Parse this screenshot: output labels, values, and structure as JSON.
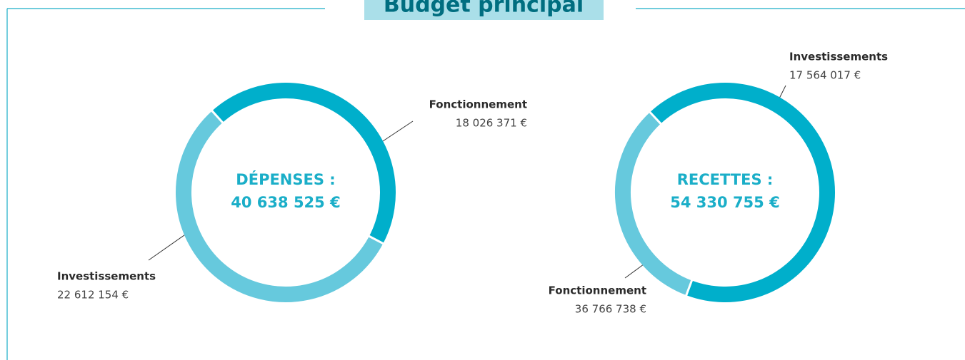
{
  "title": "Budget principal",
  "chart_data": [
    {
      "type": "pie",
      "center_label": [
        "DÉPENSES :",
        "40 638 525 €"
      ],
      "categories": [
        "Fonctionnement",
        "Investissements"
      ],
      "values": [
        18026371,
        22612154
      ],
      "value_labels": [
        "18 026 371 €",
        "22 612 154 €"
      ],
      "colors": [
        "#00afcb",
        "#66c9dd"
      ]
    },
    {
      "type": "pie",
      "center_label": [
        "RECETTES :",
        "54 330 755 €"
      ],
      "categories": [
        "Fonctionnement",
        "Investissements"
      ],
      "values": [
        36766738,
        17564017
      ],
      "value_labels": [
        "36 766 738 €",
        "17 564 017 €"
      ],
      "colors": [
        "#00afcb",
        "#66c9dd"
      ]
    }
  ]
}
